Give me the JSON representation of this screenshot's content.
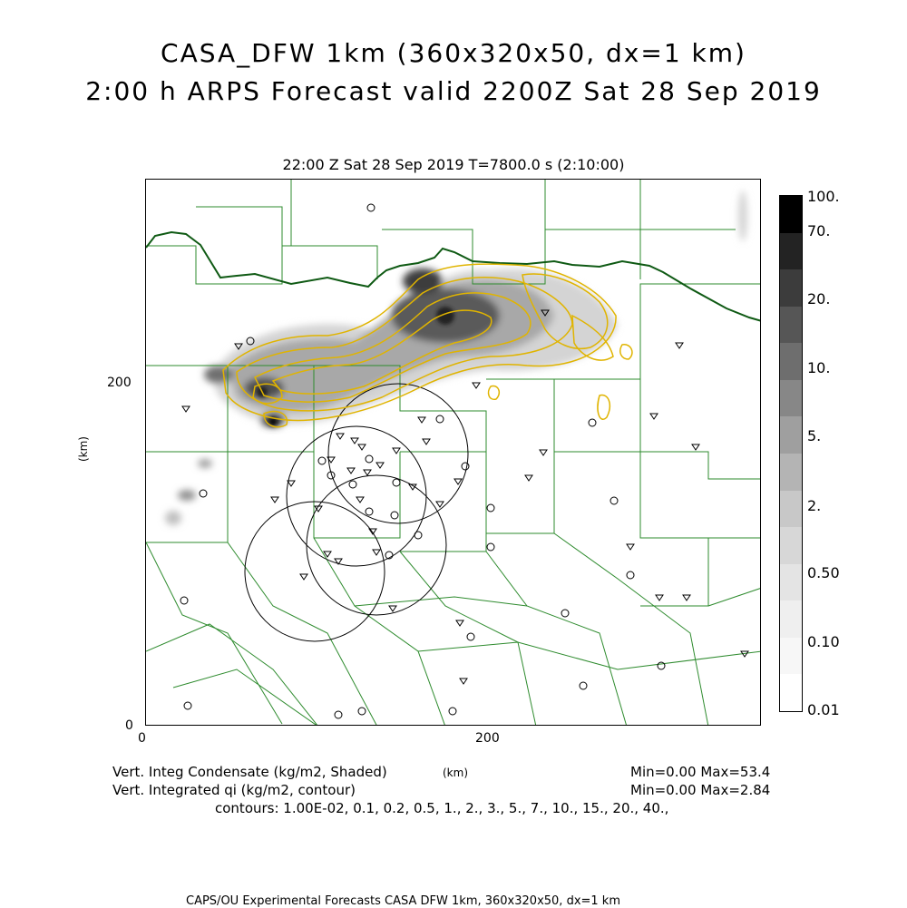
{
  "header": {
    "title_line1": "CASA_DFW 1km (360x320x50, dx=1 km)",
    "title_line2": "2:00 h ARPS Forecast valid 2200Z Sat 28 Sep 2019",
    "subtitle": "22:00 Z Sat 28 Sep 2019   T=7800.0 s (2:10:00)"
  },
  "axes": {
    "x_label": "(km)",
    "y_label": "(km)",
    "x_ticks": [
      "0",
      "200"
    ],
    "y_ticks": [
      "0",
      "200"
    ],
    "x_range_km": [
      0,
      360
    ],
    "y_range_km": [
      0,
      320
    ]
  },
  "colorbar": {
    "labels": [
      "100.",
      "70.",
      "20.",
      "10.",
      "5.",
      "2.",
      "0.50",
      "0.10",
      "0.01"
    ],
    "colors": [
      "#000000",
      "#232323",
      "#3c3c3c",
      "#565656",
      "#6e6e6e",
      "#878787",
      "#9f9f9f",
      "#b4b4b4",
      "#c8c8c8",
      "#d7d7d7",
      "#e4e4e4",
      "#efefef",
      "#f7f7f7",
      "#ffffff"
    ]
  },
  "map": {
    "contour_color": "#e0b400",
    "border_color": "#0f5a14",
    "county_color": "#2e8b2e",
    "radar_ring_color": "#000000"
  },
  "footer": {
    "field1": "Vert. Integ Condensate (kg/m2, Shaded)",
    "field1_stats": "Min=0.00 Max=53.4",
    "field2": "Vert. Integrated qi (kg/m2, contour)",
    "field2_stats": "Min=0.00 Max=2.84",
    "contours": "contours: 1.00E-02, 0.1, 0.2, 0.5, 1., 2., 3., 5., 7., 10., 15., 20., 40.,",
    "credit": "CAPS/OU Experimental Forecasts  CASA DFW 1km, 360x320x50, dx=1 km"
  }
}
